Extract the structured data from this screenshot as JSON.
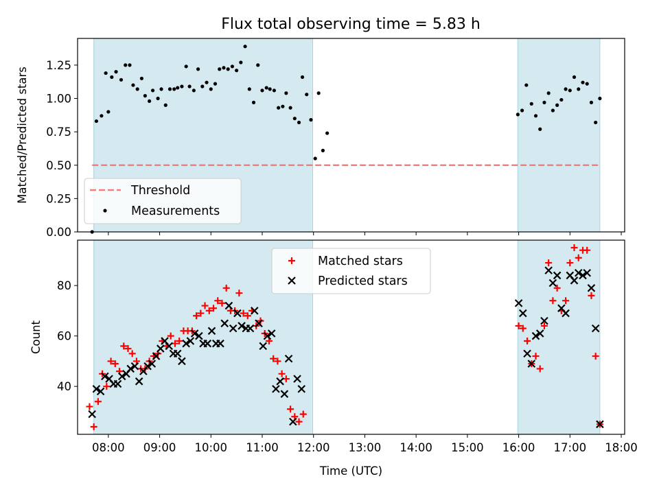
{
  "chart_data": [
    {
      "type": "scatter",
      "title": "Flux total observing time = 5.83 h",
      "xlabel": "",
      "ylabel": "Matched/Predicted stars",
      "xlim": [
        "07:24",
        "18:04"
      ],
      "ylim": [
        0,
        1.45
      ],
      "yticks": [
        "0.00",
        "0.25",
        "0.50",
        "0.75",
        "1.00",
        "1.25"
      ],
      "shaded_intervals": [
        [
          "07:43",
          "11:59"
        ],
        [
          "15:59",
          "17:35"
        ]
      ],
      "shade_color": "#d4eaf0",
      "grid": false,
      "legend_position": "lower-left",
      "threshold": {
        "name": "Threshold",
        "value": 0.5,
        "x_start": "07:41",
        "x_end": "17:35",
        "color": "#f08080",
        "style": "dashed"
      },
      "series": [
        {
          "name": "Measurements",
          "color": "#000000",
          "marker": "dot",
          "points": [
            [
              "07:41",
              0.0
            ],
            [
              "07:46",
              0.83
            ],
            [
              "07:52",
              0.87
            ],
            [
              "07:57",
              1.19
            ],
            [
              "08:00",
              0.9
            ],
            [
              "08:04",
              1.16
            ],
            [
              "08:09",
              1.2
            ],
            [
              "08:15",
              1.14
            ],
            [
              "08:20",
              1.25
            ],
            [
              "08:25",
              1.25
            ],
            [
              "08:29",
              1.1
            ],
            [
              "08:34",
              1.07
            ],
            [
              "08:39",
              1.15
            ],
            [
              "08:43",
              1.02
            ],
            [
              "08:48",
              0.98
            ],
            [
              "08:52",
              1.06
            ],
            [
              "08:58",
              1.0
            ],
            [
              "09:02",
              1.07
            ],
            [
              "09:07",
              0.95
            ],
            [
              "09:12",
              1.07
            ],
            [
              "09:17",
              1.07
            ],
            [
              "09:21",
              1.08
            ],
            [
              "09:26",
              1.09
            ],
            [
              "09:31",
              1.24
            ],
            [
              "09:35",
              1.09
            ],
            [
              "09:40",
              1.06
            ],
            [
              "09:45",
              1.22
            ],
            [
              "09:50",
              1.09
            ],
            [
              "09:55",
              1.12
            ],
            [
              "10:00",
              1.07
            ],
            [
              "10:05",
              1.11
            ],
            [
              "10:10",
              1.22
            ],
            [
              "10:15",
              1.23
            ],
            [
              "10:20",
              1.22
            ],
            [
              "10:25",
              1.24
            ],
            [
              "10:30",
              1.21
            ],
            [
              "10:35",
              1.27
            ],
            [
              "10:40",
              1.39
            ],
            [
              "10:45",
              1.07
            ],
            [
              "10:50",
              0.97
            ],
            [
              "10:55",
              1.25
            ],
            [
              "11:00",
              1.06
            ],
            [
              "11:05",
              1.08
            ],
            [
              "11:09",
              1.07
            ],
            [
              "11:14",
              1.06
            ],
            [
              "11:19",
              0.93
            ],
            [
              "11:24",
              0.94
            ],
            [
              "11:28",
              1.04
            ],
            [
              "11:33",
              0.93
            ],
            [
              "11:38",
              0.85
            ],
            [
              "11:43",
              0.82
            ],
            [
              "11:47",
              1.16
            ],
            [
              "11:52",
              1.03
            ],
            [
              "11:57",
              0.84
            ],
            [
              "12:02",
              0.55
            ],
            [
              "12:06",
              1.04
            ],
            [
              "12:11",
              0.61
            ],
            [
              "12:16",
              0.74
            ],
            [
              "15:59",
              0.88
            ],
            [
              "16:04",
              0.91
            ],
            [
              "16:09",
              1.1
            ],
            [
              "16:15",
              0.96
            ],
            [
              "16:20",
              0.87
            ],
            [
              "16:25",
              0.77
            ],
            [
              "16:30",
              0.97
            ],
            [
              "16:35",
              1.04
            ],
            [
              "16:40",
              0.91
            ],
            [
              "16:45",
              0.95
            ],
            [
              "16:50",
              0.99
            ],
            [
              "16:55",
              1.07
            ],
            [
              "17:00",
              1.06
            ],
            [
              "17:05",
              1.16
            ],
            [
              "17:10",
              1.07
            ],
            [
              "17:15",
              1.12
            ],
            [
              "17:20",
              1.11
            ],
            [
              "17:25",
              0.97
            ],
            [
              "17:30",
              0.82
            ],
            [
              "17:35",
              1.0
            ]
          ]
        }
      ]
    },
    {
      "type": "scatter",
      "title": "",
      "xlabel": "Time (UTC)",
      "ylabel": "Count",
      "xlim": [
        "07:24",
        "18:04"
      ],
      "ylim": [
        21,
        98
      ],
      "yticks": [
        "40",
        "60",
        "80"
      ],
      "xticks": [
        "08:00",
        "09:00",
        "10:00",
        "11:00",
        "12:00",
        "13:00",
        "14:00",
        "15:00",
        "16:00",
        "17:00",
        "18:00"
      ],
      "shaded_intervals": [
        [
          "07:43",
          "11:59"
        ],
        [
          "15:59",
          "17:35"
        ]
      ],
      "shade_color": "#d4eaf0",
      "grid": false,
      "legend_position": "top-center",
      "series": [
        {
          "name": "Matched stars",
          "color": "#ff0000",
          "marker": "plus",
          "points": [
            [
              "07:38",
              32
            ],
            [
              "07:43",
              24
            ],
            [
              "07:48",
              34
            ],
            [
              "07:53",
              45
            ],
            [
              "07:58",
              40
            ],
            [
              "08:03",
              50
            ],
            [
              "08:08",
              49
            ],
            [
              "08:13",
              46
            ],
            [
              "08:18",
              56
            ],
            [
              "08:23",
              55
            ],
            [
              "08:28",
              53
            ],
            [
              "08:33",
              50
            ],
            [
              "08:38",
              47
            ],
            [
              "08:43",
              47
            ],
            [
              "08:48",
              50
            ],
            [
              "08:53",
              52
            ],
            [
              "08:58",
              53
            ],
            [
              "09:03",
              58
            ],
            [
              "09:08",
              56
            ],
            [
              "09:13",
              60
            ],
            [
              "09:18",
              57
            ],
            [
              "09:23",
              58
            ],
            [
              "09:28",
              62
            ],
            [
              "09:33",
              62
            ],
            [
              "09:38",
              62
            ],
            [
              "09:43",
              68
            ],
            [
              "09:48",
              69
            ],
            [
              "09:53",
              72
            ],
            [
              "09:58",
              70
            ],
            [
              "10:03",
              71
            ],
            [
              "10:08",
              74
            ],
            [
              "10:13",
              73
            ],
            [
              "10:18",
              79
            ],
            [
              "10:23",
              70
            ],
            [
              "10:28",
              70
            ],
            [
              "10:33",
              77
            ],
            [
              "10:38",
              69
            ],
            [
              "10:43",
              68
            ],
            [
              "10:48",
              70
            ],
            [
              "10:53",
              64
            ],
            [
              "10:58",
              66
            ],
            [
              "11:03",
              61
            ],
            [
              "11:08",
              58
            ],
            [
              "11:13",
              51
            ],
            [
              "11:18",
              50
            ],
            [
              "11:23",
              45
            ],
            [
              "11:28",
              43
            ],
            [
              "11:33",
              31
            ],
            [
              "11:38",
              28
            ],
            [
              "11:43",
              26
            ],
            [
              "11:48",
              29
            ],
            [
              "16:00",
              64
            ],
            [
              "16:05",
              63
            ],
            [
              "16:10",
              58
            ],
            [
              "16:15",
              49
            ],
            [
              "16:20",
              52
            ],
            [
              "16:25",
              47
            ],
            [
              "16:30",
              64
            ],
            [
              "16:35",
              89
            ],
            [
              "16:40",
              74
            ],
            [
              "16:45",
              79
            ],
            [
              "16:50",
              70
            ],
            [
              "16:55",
              74
            ],
            [
              "17:00",
              89
            ],
            [
              "17:05",
              95
            ],
            [
              "17:10",
              91
            ],
            [
              "17:15",
              94
            ],
            [
              "17:20",
              94
            ],
            [
              "17:25",
              76
            ],
            [
              "17:30",
              52
            ],
            [
              "17:35",
              25
            ]
          ]
        },
        {
          "name": "Predicted stars",
          "color": "#000000",
          "marker": "x",
          "points": [
            [
              "07:41",
              29
            ],
            [
              "07:46",
              39
            ],
            [
              "07:51",
              38
            ],
            [
              "07:56",
              44
            ],
            [
              "08:01",
              43
            ],
            [
              "08:06",
              41
            ],
            [
              "08:11",
              41
            ],
            [
              "08:16",
              44
            ],
            [
              "08:21",
              45
            ],
            [
              "08:26",
              47
            ],
            [
              "08:31",
              48
            ],
            [
              "08:36",
              42
            ],
            [
              "08:41",
              46
            ],
            [
              "08:46",
              48
            ],
            [
              "08:51",
              49
            ],
            [
              "08:56",
              52
            ],
            [
              "09:01",
              55
            ],
            [
              "09:06",
              58
            ],
            [
              "09:11",
              56
            ],
            [
              "09:16",
              53
            ],
            [
              "09:21",
              53
            ],
            [
              "09:26",
              50
            ],
            [
              "09:31",
              57
            ],
            [
              "09:36",
              58
            ],
            [
              "09:41",
              61
            ],
            [
              "09:46",
              60
            ],
            [
              "09:51",
              57
            ],
            [
              "09:56",
              57
            ],
            [
              "10:01",
              62
            ],
            [
              "10:06",
              57
            ],
            [
              "10:11",
              57
            ],
            [
              "10:16",
              65
            ],
            [
              "10:21",
              72
            ],
            [
              "10:26",
              63
            ],
            [
              "10:31",
              69
            ],
            [
              "10:36",
              64
            ],
            [
              "10:41",
              63
            ],
            [
              "10:46",
              63
            ],
            [
              "10:51",
              70
            ],
            [
              "10:56",
              65
            ],
            [
              "11:01",
              56
            ],
            [
              "11:06",
              60
            ],
            [
              "11:11",
              61
            ],
            [
              "11:16",
              39
            ],
            [
              "11:21",
              42
            ],
            [
              "11:26",
              37
            ],
            [
              "11:31",
              51
            ],
            [
              "11:36",
              26
            ],
            [
              "11:41",
              43
            ],
            [
              "11:46",
              39
            ],
            [
              "16:00",
              73
            ],
            [
              "16:05",
              69
            ],
            [
              "16:10",
              53
            ],
            [
              "16:15",
              49
            ],
            [
              "16:20",
              60
            ],
            [
              "16:25",
              61
            ],
            [
              "16:30",
              66
            ],
            [
              "16:35",
              86
            ],
            [
              "16:40",
              81
            ],
            [
              "16:45",
              84
            ],
            [
              "16:50",
              71
            ],
            [
              "16:55",
              69
            ],
            [
              "17:00",
              84
            ],
            [
              "17:05",
              82
            ],
            [
              "17:10",
              85
            ],
            [
              "17:15",
              84
            ],
            [
              "17:20",
              85
            ],
            [
              "17:25",
              79
            ],
            [
              "17:30",
              63
            ],
            [
              "17:35",
              25
            ]
          ]
        }
      ]
    }
  ]
}
